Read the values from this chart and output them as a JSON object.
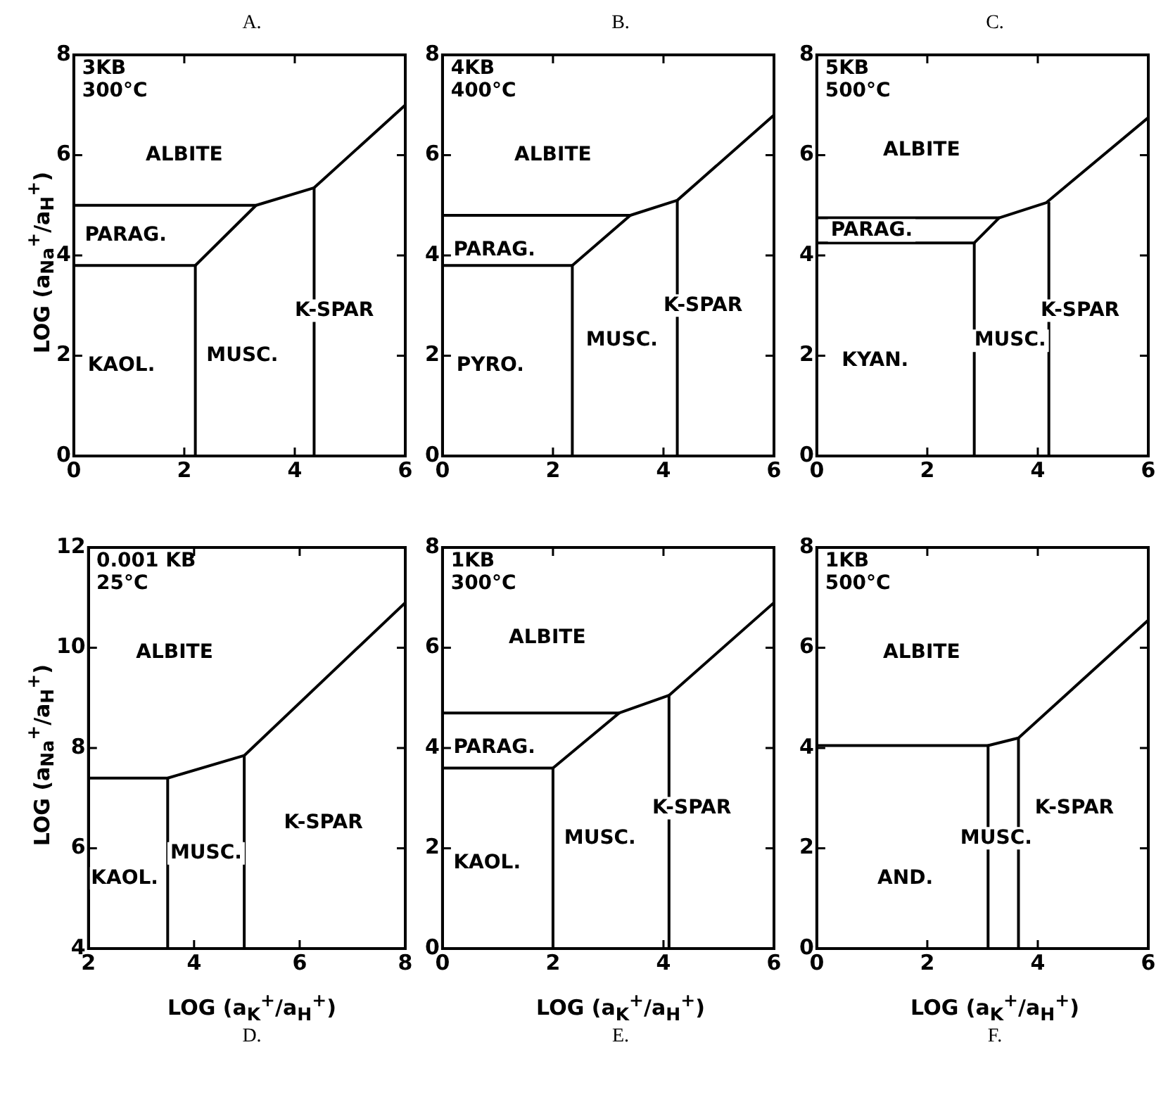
{
  "chart_data": [
    {
      "type": "line",
      "title": "A.",
      "ylabel": "LOG (a$_{Na}$$^{+}$/a$_{H}$$^{+}$)",
      "xlim": [
        0,
        6
      ],
      "ylim": [
        0,
        8
      ],
      "xticks": [
        0,
        2,
        4,
        6
      ],
      "yticks": [
        0,
        2,
        4,
        6,
        8
      ],
      "grid": false,
      "legend": false,
      "marker": "none",
      "line_style": "solid",
      "series": [
        {
          "color": "#000000",
          "x": [
            0,
            3.3,
            4.35,
            6
          ],
          "values": [
            5.0,
            5.0,
            5.35,
            7.0
          ]
        },
        {
          "color": "#000000",
          "x": [
            0,
            2.2,
            3.3
          ],
          "values": [
            3.8,
            3.8,
            5.0
          ]
        },
        {
          "color": "#000000",
          "x": [
            2.2,
            2.2
          ],
          "values": [
            0,
            3.8
          ]
        },
        {
          "color": "#000000",
          "x": [
            4.35,
            4.35
          ],
          "values": [
            0,
            5.35
          ]
        }
      ],
      "annotations": [
        "3KB\n300°C",
        "ALBITE",
        "PARAG.",
        "KAOL.",
        "MUSC.",
        "K-SPAR"
      ]
    },
    {
      "type": "line",
      "title": "B.",
      "xlim": [
        0,
        6
      ],
      "ylim": [
        0,
        8
      ],
      "xticks": [
        0,
        2,
        4,
        6
      ],
      "yticks": [
        0,
        2,
        4,
        6,
        8
      ],
      "grid": false,
      "legend": false,
      "marker": "none",
      "line_style": "solid",
      "series": [
        {
          "color": "#000000",
          "x": [
            0,
            3.4,
            4.25,
            6
          ],
          "values": [
            4.8,
            4.8,
            5.1,
            6.8
          ]
        },
        {
          "color": "#000000",
          "x": [
            0,
            2.35,
            3.4
          ],
          "values": [
            3.8,
            3.8,
            4.8
          ]
        },
        {
          "color": "#000000",
          "x": [
            2.35,
            2.35
          ],
          "values": [
            0,
            3.8
          ]
        },
        {
          "color": "#000000",
          "x": [
            4.25,
            4.25
          ],
          "values": [
            0,
            5.1
          ]
        }
      ],
      "annotations": [
        "4KB\n400°C",
        "ALBITE",
        "PARAG.",
        "PYRO.",
        "MUSC.",
        "K-SPAR"
      ]
    },
    {
      "type": "line",
      "title": "C.",
      "xlim": [
        0,
        6
      ],
      "ylim": [
        0,
        8
      ],
      "xticks": [
        0,
        2,
        4,
        6
      ],
      "yticks": [
        0,
        2,
        4,
        6,
        8
      ],
      "grid": false,
      "legend": false,
      "marker": "none",
      "line_style": "solid",
      "series": [
        {
          "color": "#000000",
          "x": [
            0,
            3.3,
            4.15,
            6
          ],
          "values": [
            4.75,
            4.75,
            5.05,
            6.75
          ]
        },
        {
          "color": "#000000",
          "x": [
            0,
            2.85,
            3.3
          ],
          "values": [
            4.25,
            4.25,
            4.75
          ]
        },
        {
          "color": "#000000",
          "x": [
            2.85,
            2.85
          ],
          "values": [
            0,
            4.25
          ]
        },
        {
          "color": "#000000",
          "x": [
            4.2,
            4.2
          ],
          "values": [
            0,
            5.05
          ]
        }
      ],
      "annotations": [
        "5KB\n500°C",
        "ALBITE",
        "PARAG.",
        "KYAN.",
        "MUSC.",
        "K-SPAR"
      ]
    },
    {
      "type": "line",
      "title": "D.",
      "xlabel": "LOG (a$_{K}$$^{+}$/a$_{H}$$^{+}$)",
      "ylabel": "LOG (a$_{Na}$$^{+}$/a$_{H}$$^{+}$)",
      "xlim": [
        2,
        8
      ],
      "ylim": [
        4,
        12
      ],
      "xticks": [
        2,
        4,
        6,
        8
      ],
      "yticks": [
        4,
        6,
        8,
        10,
        12
      ],
      "grid": false,
      "legend": false,
      "marker": "none",
      "line_style": "solid",
      "series": [
        {
          "color": "#000000",
          "x": [
            2,
            3.5,
            4.95,
            8
          ],
          "values": [
            7.4,
            7.4,
            7.85,
            10.9
          ]
        },
        {
          "color": "#000000",
          "x": [
            3.5,
            3.5
          ],
          "values": [
            4,
            7.4
          ]
        },
        {
          "color": "#000000",
          "x": [
            4.95,
            4.95
          ],
          "values": [
            4,
            7.85
          ]
        }
      ],
      "annotations": [
        "0.001 KB\n25°C",
        "ALBITE",
        "KAOL.",
        "MUSC.",
        "K-SPAR"
      ]
    },
    {
      "type": "line",
      "title": "E.",
      "xlabel": "LOG (a$_{K}$$^{+}$/a$_{H}$$^{+}$)",
      "xlim": [
        0,
        6
      ],
      "ylim": [
        0,
        8
      ],
      "xticks": [
        0,
        2,
        4,
        6
      ],
      "yticks": [
        0,
        2,
        4,
        6,
        8
      ],
      "grid": false,
      "legend": false,
      "marker": "none",
      "line_style": "solid",
      "series": [
        {
          "color": "#000000",
          "x": [
            0,
            3.2,
            4.1,
            6
          ],
          "values": [
            4.7,
            4.7,
            5.05,
            6.9
          ]
        },
        {
          "color": "#000000",
          "x": [
            0,
            2.0,
            3.2
          ],
          "values": [
            3.6,
            3.6,
            4.7
          ]
        },
        {
          "color": "#000000",
          "x": [
            2.0,
            2.0
          ],
          "values": [
            0,
            3.6
          ]
        },
        {
          "color": "#000000",
          "x": [
            4.1,
            4.1
          ],
          "values": [
            0,
            5.05
          ]
        }
      ],
      "annotations": [
        "1KB\n300°C",
        "ALBITE",
        "PARAG.",
        "KAOL.",
        "MUSC.",
        "K-SPAR"
      ]
    },
    {
      "type": "line",
      "title": "F.",
      "xlabel": "LOG (a$_{K}$$^{+}$/a$_{H}$$^{+}$)",
      "xlim": [
        0,
        6
      ],
      "ylim": [
        0,
        8
      ],
      "xticks": [
        0,
        2,
        4,
        6
      ],
      "yticks": [
        0,
        2,
        4,
        6,
        8
      ],
      "grid": false,
      "legend": false,
      "marker": "none",
      "line_style": "solid",
      "series": [
        {
          "color": "#000000",
          "x": [
            0,
            3.1,
            3.65,
            6
          ],
          "values": [
            4.05,
            4.05,
            4.2,
            6.55
          ]
        },
        {
          "color": "#000000",
          "x": [
            3.1,
            3.1
          ],
          "values": [
            0,
            4.05
          ]
        },
        {
          "color": "#000000",
          "x": [
            3.65,
            3.65
          ],
          "values": [
            0,
            4.2
          ]
        }
      ],
      "annotations": [
        "1KB\n500°C",
        "ALBITE",
        "AND.",
        "MUSC.",
        "K-SPAR"
      ]
    }
  ]
}
